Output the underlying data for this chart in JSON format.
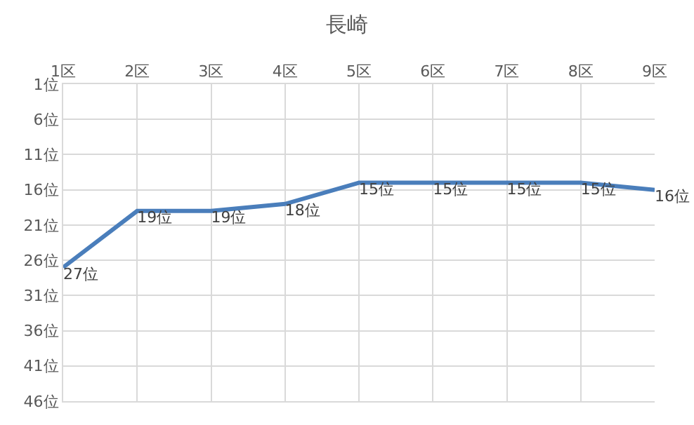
{
  "chart_data": {
    "type": "line",
    "title": "長崎",
    "categories": [
      "1区",
      "2区",
      "3区",
      "4区",
      "5区",
      "6区",
      "7区",
      "8区",
      "9区"
    ],
    "series": [
      {
        "color": "#4a7ebb",
        "values": [
          27,
          19,
          19,
          18,
          15,
          15,
          15,
          15,
          16
        ],
        "value_labels": [
          "27位",
          "19位",
          "19位",
          "18位",
          "15位",
          "15位",
          "15位",
          "15位",
          "16位"
        ]
      }
    ],
    "ylim": [
      46,
      1
    ],
    "yticks": [
      {
        "value": 1,
        "label": "1位"
      },
      {
        "value": 6,
        "label": "6位"
      },
      {
        "value": 11,
        "label": "11位"
      },
      {
        "value": 16,
        "label": "16位"
      },
      {
        "value": 21,
        "label": "21位"
      },
      {
        "value": 26,
        "label": "26位"
      },
      {
        "value": 31,
        "label": "31位"
      },
      {
        "value": 36,
        "label": "36位"
      },
      {
        "value": 41,
        "label": "41位"
      },
      {
        "value": 46,
        "label": "46位"
      }
    ],
    "grid": true,
    "legend": false,
    "marker": "none",
    "line_style": "solid"
  }
}
